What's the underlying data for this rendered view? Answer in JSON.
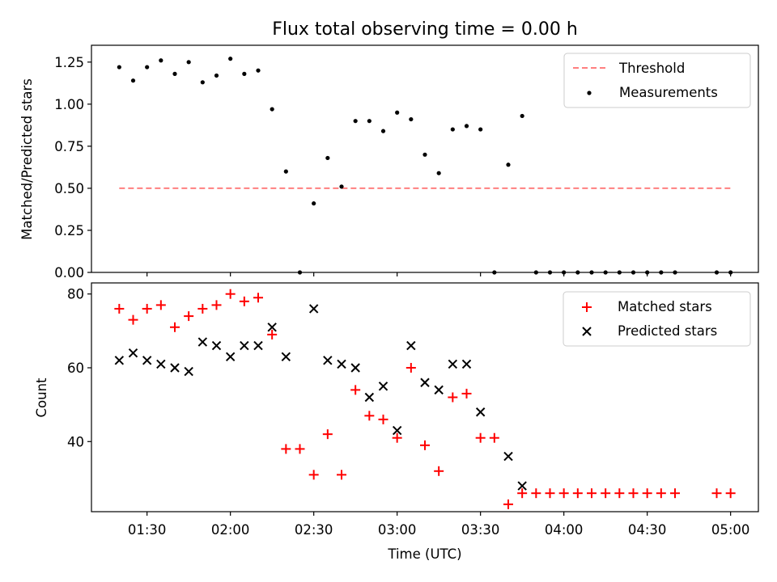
{
  "chart_data": [
    {
      "type": "scatter",
      "title": "Flux total observing time = 0.00 h",
      "xlabel": "",
      "ylabel": "Matched/Predicted stars",
      "ylim": [
        0,
        1.35
      ],
      "yticks": [
        "0.00",
        "0.25",
        "0.50",
        "0.75",
        "1.00",
        "1.25"
      ],
      "legend_position": "upper right",
      "grid": false,
      "threshold": {
        "name": "Threshold",
        "value": 0.5,
        "x_start": "01:20",
        "x_end": "05:00",
        "color": "#ff7f7f",
        "style": "dashed"
      },
      "series": [
        {
          "name": "Measurements",
          "color": "#000000",
          "x": [
            "01:20",
            "01:25",
            "01:30",
            "01:35",
            "01:40",
            "01:45",
            "01:50",
            "01:55",
            "02:00",
            "02:05",
            "02:10",
            "02:15",
            "02:20",
            "02:25",
            "02:30",
            "02:35",
            "02:40",
            "02:45",
            "02:50",
            "02:55",
            "03:00",
            "03:05",
            "03:10",
            "03:15",
            "03:20",
            "03:25",
            "03:30",
            "03:35",
            "03:40",
            "03:45",
            "03:50",
            "03:55",
            "04:00",
            "04:05",
            "04:10",
            "04:15",
            "04:20",
            "04:25",
            "04:30",
            "04:35",
            "04:40",
            "04:55",
            "05:00"
          ],
          "y": [
            1.22,
            1.14,
            1.22,
            1.26,
            1.18,
            1.25,
            1.13,
            1.17,
            1.27,
            1.18,
            1.2,
            0.97,
            0.6,
            0.0,
            0.41,
            0.68,
            0.51,
            0.9,
            0.9,
            0.84,
            0.95,
            0.91,
            0.7,
            0.59,
            0.85,
            0.87,
            0.85,
            0.0,
            0.64,
            0.93,
            0.0,
            0.0,
            0.0,
            0.0,
            0.0,
            0.0,
            0.0,
            0.0,
            0.0,
            0.0,
            0.0,
            0.0,
            0.0
          ]
        }
      ]
    },
    {
      "type": "scatter",
      "title": "",
      "xlabel": "Time (UTC)",
      "ylabel": "Count",
      "ylim": [
        21,
        83
      ],
      "yticks": [
        "40",
        "60",
        "80"
      ],
      "xticks": [
        "01:30",
        "02:00",
        "02:30",
        "03:00",
        "03:30",
        "04:00",
        "04:30",
        "05:00"
      ],
      "xlim": [
        "01:10",
        "05:10"
      ],
      "legend_position": "upper right",
      "grid": false,
      "series": [
        {
          "name": "Matched stars",
          "marker": "plus",
          "color": "#ff0000",
          "x": [
            "01:20",
            "01:25",
            "01:30",
            "01:35",
            "01:40",
            "01:45",
            "01:50",
            "01:55",
            "02:00",
            "02:05",
            "02:10",
            "02:15",
            "02:20",
            "02:25",
            "02:30",
            "02:35",
            "02:40",
            "02:45",
            "02:50",
            "02:55",
            "03:00",
            "03:05",
            "03:10",
            "03:15",
            "03:20",
            "03:25",
            "03:30",
            "03:35",
            "03:40",
            "03:45",
            "03:50",
            "03:55",
            "04:00",
            "04:05",
            "04:10",
            "04:15",
            "04:20",
            "04:25",
            "04:30",
            "04:35",
            "04:40",
            "04:55",
            "05:00"
          ],
          "y": [
            76,
            73,
            76,
            77,
            71,
            74,
            76,
            77,
            80,
            78,
            79,
            69,
            38,
            38,
            31,
            42,
            31,
            54,
            47,
            46,
            41,
            60,
            39,
            32,
            52,
            53,
            41,
            41,
            23,
            26,
            26,
            26,
            26,
            26,
            26,
            26,
            26,
            26,
            26,
            26,
            26,
            26,
            26
          ]
        },
        {
          "name": "Predicted stars",
          "marker": "x",
          "color": "#000000",
          "x": [
            "01:20",
            "01:25",
            "01:30",
            "01:35",
            "01:40",
            "01:45",
            "01:50",
            "01:55",
            "02:00",
            "02:05",
            "02:10",
            "02:15",
            "02:20",
            "02:30",
            "02:35",
            "02:40",
            "02:45",
            "02:50",
            "02:55",
            "03:00",
            "03:05",
            "03:10",
            "03:15",
            "03:20",
            "03:25",
            "03:30",
            "03:40",
            "03:45"
          ],
          "y": [
            62,
            64,
            62,
            61,
            60,
            59,
            67,
            66,
            63,
            66,
            66,
            71,
            63,
            76,
            62,
            61,
            60,
            52,
            55,
            43,
            66,
            56,
            54,
            61,
            61,
            48,
            36,
            28
          ]
        }
      ]
    }
  ]
}
